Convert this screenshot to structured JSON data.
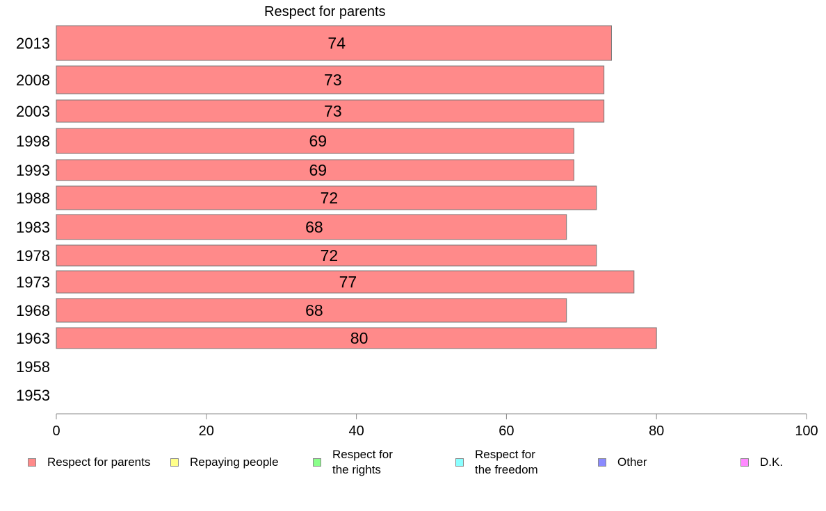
{
  "colors": {
    "respect_for_parents": "#ff8a8a",
    "repaying_people": "#ffff8a",
    "respect_for_rights": "#8aff8a",
    "respect_for_freedom": "#8affff",
    "other": "#8a8aff",
    "dk": "#ff8aff",
    "axis": "#888888"
  },
  "chart_data": {
    "type": "bar",
    "orientation": "horizontal",
    "title": "Respect for parents",
    "xlabel": "",
    "ylabel": "",
    "xlim": [
      0,
      100
    ],
    "x_ticks": [
      "0",
      "20",
      "40",
      "60",
      "80",
      "100"
    ],
    "grid": false,
    "legend_position": "bottom",
    "categories": [
      "2013",
      "2008",
      "2003",
      "1998",
      "1993",
      "1988",
      "1983",
      "1978",
      "1973",
      "1968",
      "1963",
      "1958",
      "1953"
    ],
    "series": [
      {
        "name": "Respect for parents",
        "values": [
          74,
          73,
          73,
          69,
          69,
          72,
          68,
          72,
          77,
          68,
          80,
          null,
          null
        ]
      }
    ],
    "legend": [
      {
        "label": "Respect for parents",
        "color_key": "respect_for_parents"
      },
      {
        "label": "Repaying people",
        "color_key": "repaying_people"
      },
      {
        "label": "Respect for\nthe rights",
        "color_key": "respect_for_rights"
      },
      {
        "label": "Respect for\nthe freedom",
        "color_key": "respect_for_freedom"
      },
      {
        "label": "Other",
        "color_key": "other"
      },
      {
        "label": "D.K.",
        "color_key": "dk"
      }
    ]
  }
}
